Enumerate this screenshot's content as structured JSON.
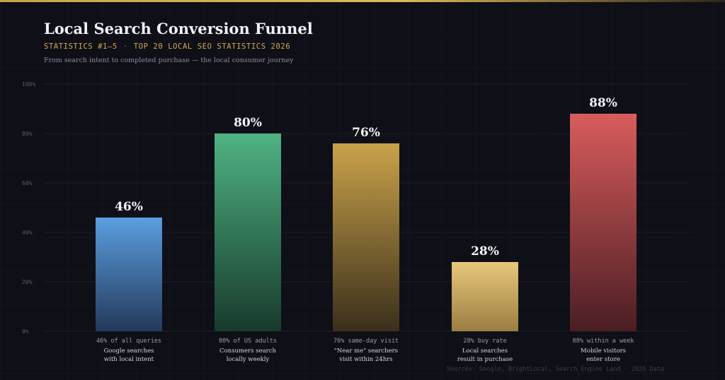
{
  "header": {
    "title": "Local Search Conversion Funnel",
    "subtitle_left": "STATISTICS #1–5",
    "subtitle_sep": "·",
    "subtitle_right": "TOP 20 LOCAL SEO STATISTICS 2026",
    "description": "From search intent to completed purchase — the local consumer journey"
  },
  "footer": {
    "sources": "Sources: Google, BrightLocal, Search Engine Land · 2026 Data"
  },
  "colors": {
    "accent": "#d4aa4e",
    "background": "#0e0f17",
    "grid": "#1d1f2a"
  },
  "chart_data": {
    "type": "bar",
    "title": "Local Search Conversion Funnel",
    "ylim": [
      0,
      100
    ],
    "yticks": [
      0,
      20,
      40,
      60,
      80,
      100
    ],
    "ytick_labels": [
      "0%",
      "20%",
      "40%",
      "60%",
      "80%",
      "100%"
    ],
    "grid": true,
    "categories": [
      "46% of all queries",
      "80% of US adults",
      "76% same-day visit",
      "28% buy rate",
      "88% within a week"
    ],
    "bars": [
      {
        "value": 46,
        "value_label": "46%",
        "stat": "46% of all queries",
        "desc_line1": "Google searches",
        "desc_line2": "with local intent",
        "color_top": "#5b9ee0",
        "color_bottom": "#24395a"
      },
      {
        "value": 80,
        "value_label": "80%",
        "stat": "80% of US adults",
        "desc_line1": "Consumers search",
        "desc_line2": "locally weekly",
        "color_top": "#4fb383",
        "color_bottom": "#183a2c"
      },
      {
        "value": 76,
        "value_label": "76%",
        "stat": "76% same-day visit",
        "desc_line1": "\"Near me\" searchers",
        "desc_line2": "visit within 24hrs",
        "color_top": "#c9a24a",
        "color_bottom": "#3a2f1c"
      },
      {
        "value": 28,
        "value_label": "28%",
        "stat": "28% buy rate",
        "desc_line1": "Local searches",
        "desc_line2": "result in purchase",
        "color_top": "#e8c87a",
        "color_bottom": "#9a7d42"
      },
      {
        "value": 88,
        "value_label": "88%",
        "stat": "88% within a week",
        "desc_line1": "Mobile visitors",
        "desc_line2": "enter store",
        "color_top": "#d95c5c",
        "color_bottom": "#4a1e24"
      }
    ]
  }
}
